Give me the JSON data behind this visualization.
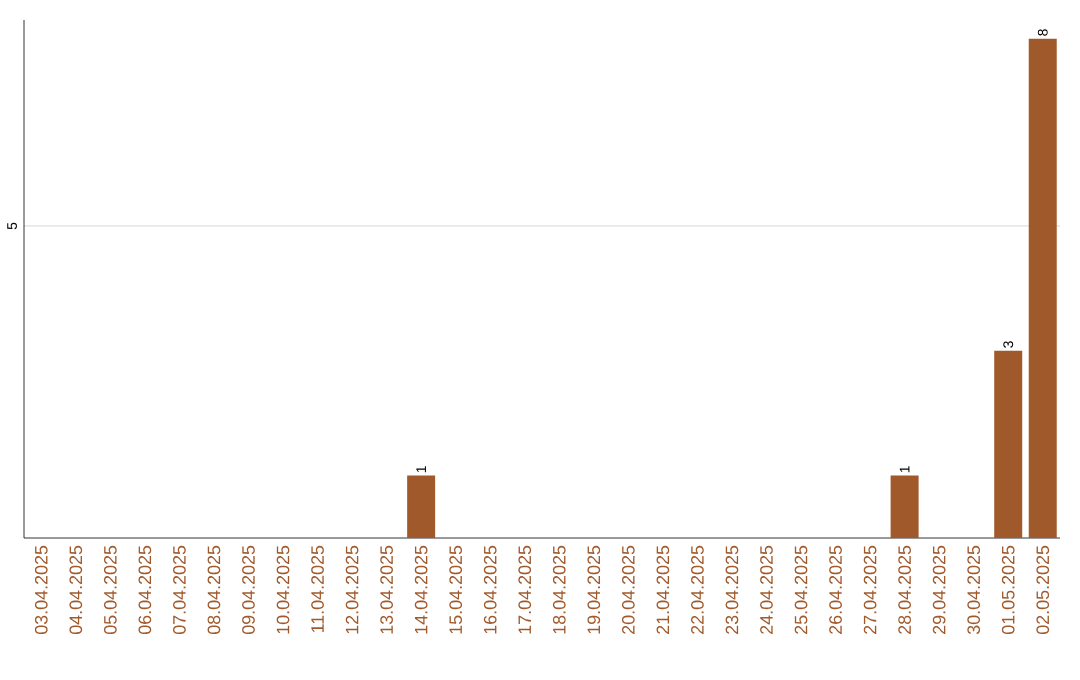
{
  "chart_data": {
    "type": "bar",
    "categories": [
      "03.04.2025",
      "04.04.2025",
      "05.04.2025",
      "06.04.2025",
      "07.04.2025",
      "08.04.2025",
      "09.04.2025",
      "10.04.2025",
      "11.04.2025",
      "12.04.2025",
      "13.04.2025",
      "14.04.2025",
      "15.04.2025",
      "16.04.2025",
      "17.04.2025",
      "18.04.2025",
      "19.04.2025",
      "20.04.2025",
      "21.04.2025",
      "22.04.2025",
      "23.04.2025",
      "24.04.2025",
      "25.04.2025",
      "26.04.2025",
      "27.04.2025",
      "28.04.2025",
      "29.04.2025",
      "30.04.2025",
      "01.05.2025",
      "02.05.2025"
    ],
    "values": [
      0,
      0,
      0,
      0,
      0,
      0,
      0,
      0,
      0,
      0,
      0,
      1,
      0,
      0,
      0,
      0,
      0,
      0,
      0,
      0,
      0,
      0,
      0,
      0,
      0,
      1,
      0,
      0,
      3,
      8
    ],
    "value_labels": [
      null,
      null,
      null,
      null,
      null,
      null,
      null,
      null,
      null,
      null,
      null,
      "1",
      null,
      null,
      null,
      null,
      null,
      null,
      null,
      null,
      null,
      null,
      null,
      null,
      null,
      "1",
      null,
      null,
      "3",
      "8"
    ],
    "color": "#a0592b",
    "ylim": [
      0,
      8.3
    ],
    "yticks": [
      5
    ],
    "grid": "y"
  }
}
